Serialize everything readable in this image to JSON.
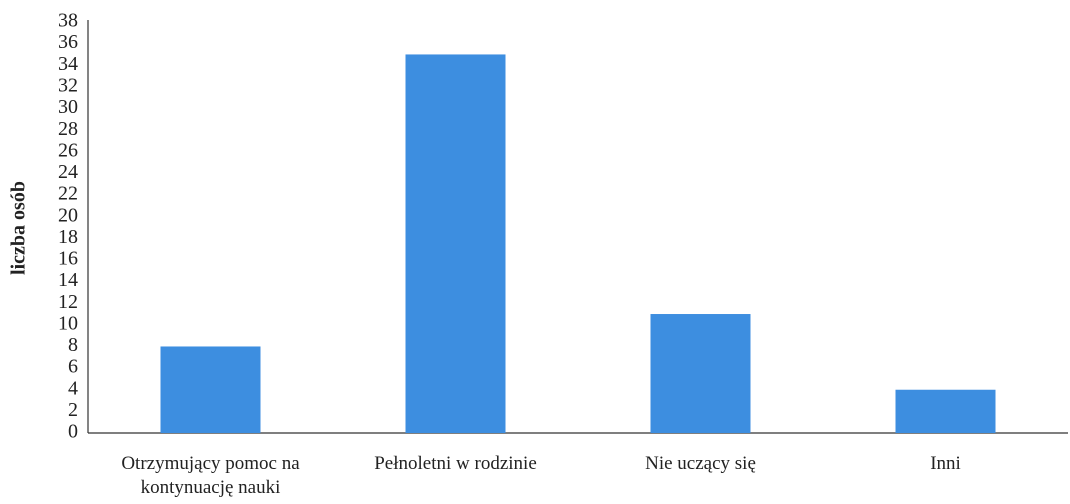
{
  "chart_data": {
    "type": "bar",
    "y_label": "liczba osób",
    "categories": [
      "Otrzymujący pomoc na kontynuację nauki",
      "Pełnoletni w rodzinie",
      "Nie uczący się",
      "Inni"
    ],
    "values": [
      8,
      35,
      11,
      4
    ],
    "color": "#3d8ee0",
    "ylim": [
      0,
      38
    ],
    "yticks": [
      0,
      2,
      4,
      6,
      8,
      10,
      12,
      14,
      16,
      18,
      20,
      22,
      24,
      26,
      28,
      30,
      32,
      34,
      36,
      38
    ],
    "grid": false
  }
}
